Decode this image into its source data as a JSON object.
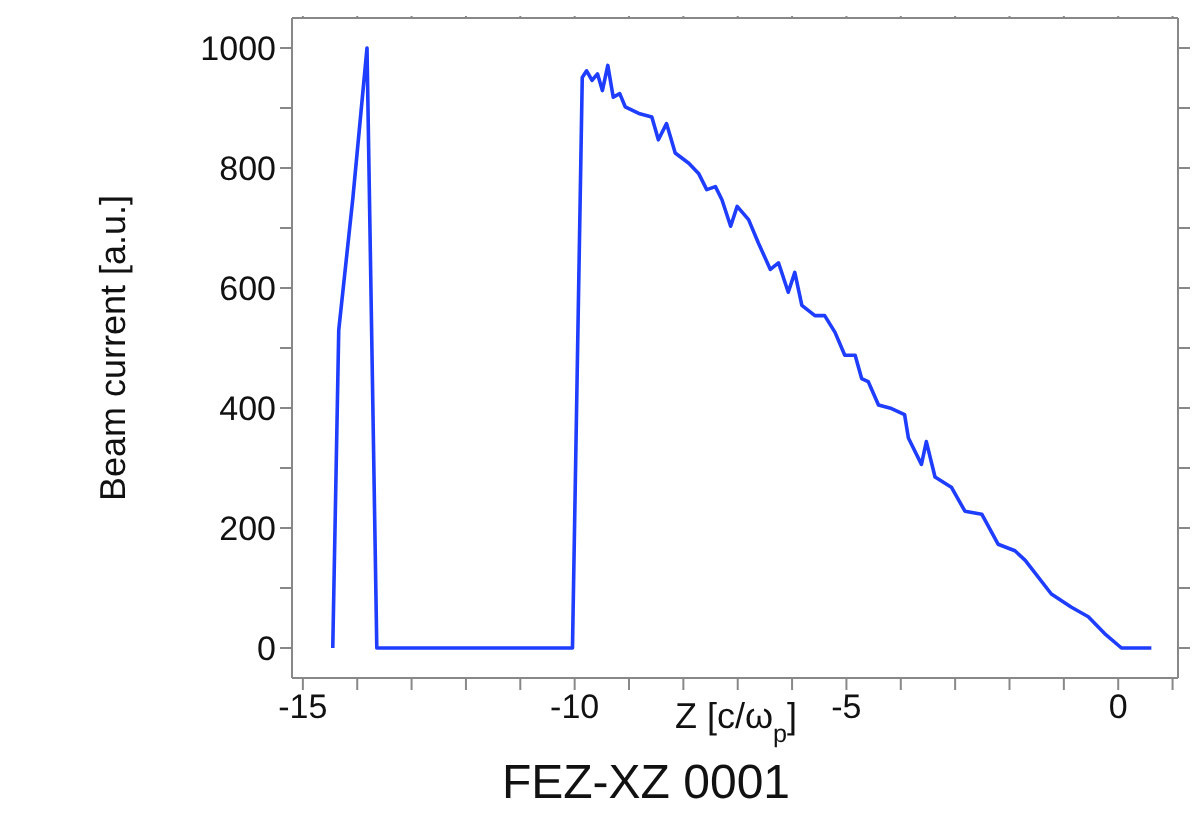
{
  "chart_data": {
    "type": "line",
    "title": "FEZ-XZ  0001",
    "xlabel": "Z [c/ω$_{p}$]",
    "ylabel": "Beam current [a.u.]",
    "xlim": [
      -15.2,
      1.1
    ],
    "ylim": [
      -50,
      1050
    ],
    "xticks": [
      -15,
      {
        "value": -14,
        "label": null
      },
      {
        "value": -13,
        "label": null
      },
      {
        "value": -12,
        "label": null
      },
      {
        "value": -11,
        "label": null
      },
      -10,
      {
        "value": -9,
        "label": null
      },
      {
        "value": -8,
        "label": null
      },
      {
        "value": -7,
        "label": null
      },
      {
        "value": -6,
        "label": null
      },
      -5,
      {
        "value": -4,
        "label": null
      },
      {
        "value": -3,
        "label": null
      },
      {
        "value": -2,
        "label": null
      },
      {
        "value": -1,
        "label": null
      },
      0,
      {
        "value": 1,
        "label": null
      }
    ],
    "yticks": [
      0,
      {
        "value": 100,
        "label": null
      },
      200,
      {
        "value": 300,
        "label": null
      },
      400,
      {
        "value": 500,
        "label": null
      },
      600,
      {
        "value": 700,
        "label": null
      },
      800,
      {
        "value": 900,
        "label": null
      },
      1000
    ],
    "marker": "none",
    "line_style": "solid",
    "series": [
      {
        "color": "#1f3dff",
        "x": [
          -14.45,
          -14.34,
          -14.08,
          -13.82,
          -13.64,
          -10.04,
          -9.86,
          -9.78,
          -9.68,
          -9.58,
          -9.49,
          -9.39,
          -9.29,
          -9.17,
          -9.07,
          -8.82,
          -8.58,
          -8.46,
          -8.31,
          -8.15,
          -7.9,
          -7.72,
          -7.57,
          -7.41,
          -7.29,
          -7.13,
          -7.01,
          -6.8,
          -6.62,
          -6.4,
          -6.25,
          -6.07,
          -5.95,
          -5.82,
          -5.58,
          -5.4,
          -5.21,
          -5.03,
          -4.84,
          -4.72,
          -4.6,
          -4.41,
          -4.17,
          -3.93,
          -3.86,
          -3.62,
          -3.53,
          -3.37,
          -3.07,
          -2.82,
          -2.51,
          -2.21,
          -1.9,
          -1.71,
          -1.23,
          -0.86,
          -0.55,
          -0.25,
          0.06,
          0.61
        ],
        "values": [
          0,
          530,
          750,
          1000,
          0,
          0,
          951,
          962,
          946,
          957,
          929,
          971,
          918,
          924,
          902,
          891,
          885,
          847,
          874,
          825,
          808,
          791,
          764,
          769,
          747,
          703,
          736,
          714,
          675,
          631,
          642,
          593,
          626,
          571,
          554,
          554,
          526,
          488,
          488,
          449,
          444,
          405,
          399,
          389,
          350,
          306,
          344,
          285,
          268,
          228,
          223,
          173,
          162,
          146,
          90,
          68,
          52,
          24,
          0,
          0
        ]
      }
    ]
  }
}
